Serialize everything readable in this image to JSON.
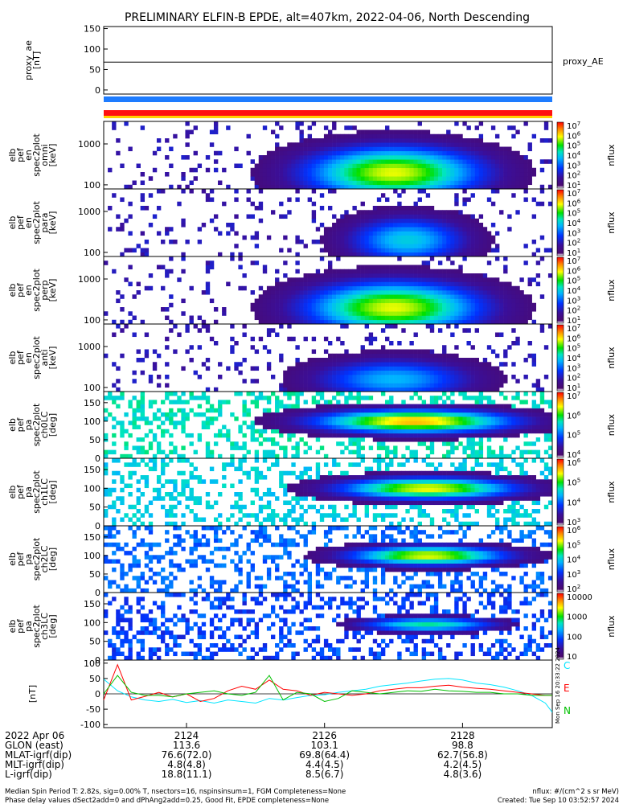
{
  "title": "PRELIMINARY ELFIN-B EPDE, alt=407km, 2022-04-06, North Descending",
  "chart_data": [
    {
      "type": "line",
      "ylabel": "proxy_ae\n[nT]",
      "yticks": [
        0,
        50,
        100,
        150
      ],
      "ylim": [
        -10,
        155
      ],
      "series": [
        {
          "name": "proxy_AE",
          "x": [
            2122.8,
            2129.3
          ],
          "values": [
            68,
            68
          ]
        }
      ]
    },
    {
      "type": "heatmap",
      "ylabel": "elb\npef\nen\nspec2plot\nomni\n[keV]",
      "ylog": true,
      "yticks": [
        100,
        1000
      ],
      "colorbar_label": "nflux",
      "colorbar_ticks": [
        "10^1",
        "10^2",
        "10^3",
        "10^4",
        "10^5",
        "10^6",
        "10^7"
      ],
      "zrange": [
        1,
        7
      ],
      "blobs": [
        {
          "x": 2127.0,
          "y": 2.3,
          "sx": 0.9,
          "sy": 0.45,
          "z": 5.4
        }
      ]
    },
    {
      "type": "heatmap",
      "ylabel": "elb\npef\nen\nspec2plot\npara\n[keV]",
      "ylog": true,
      "yticks": [
        100,
        1000
      ],
      "colorbar_label": "nflux",
      "colorbar_ticks": [
        "10^1",
        "10^2",
        "10^3",
        "10^4",
        "10^5",
        "10^6",
        "10^7"
      ],
      "zrange": [
        1,
        7
      ],
      "blobs": [
        {
          "x": 2127.2,
          "y": 2.3,
          "sx": 0.6,
          "sy": 0.4,
          "z": 3.5
        }
      ]
    },
    {
      "type": "heatmap",
      "ylabel": "elb\npef\nen\nspec2plot\nperp\n[keV]",
      "ylog": true,
      "yticks": [
        100,
        1000
      ],
      "colorbar_label": "nflux",
      "colorbar_ticks": [
        "10^1",
        "10^2",
        "10^3",
        "10^4",
        "10^5",
        "10^6",
        "10^7"
      ],
      "zrange": [
        1,
        7
      ],
      "blobs": [
        {
          "x": 2127.0,
          "y": 2.3,
          "sx": 0.9,
          "sy": 0.45,
          "z": 5.4
        }
      ]
    },
    {
      "type": "heatmap",
      "ylabel": "elb\npef\nen\nspec2plot\nanti\n[keV]",
      "ylog": true,
      "yticks": [
        100,
        1000
      ],
      "colorbar_label": "nflux",
      "colorbar_ticks": [
        "10^1",
        "10^2",
        "10^3",
        "10^4",
        "10^5",
        "10^6",
        "10^7"
      ],
      "zrange": [
        1,
        7
      ],
      "blobs": [
        {
          "x": 2127.0,
          "y": 2.2,
          "sx": 0.8,
          "sy": 0.35,
          "z": 3.2
        }
      ]
    },
    {
      "type": "heatmap",
      "ylabel": "elb\npef\npa\nspec2plot\nch0LC\n[deg]",
      "yticks": [
        0,
        50,
        100,
        150
      ],
      "ylim": [
        0,
        180
      ],
      "colorbar_label": "nflux",
      "colorbar_ticks": [
        "10^4",
        "10^5",
        "10^6",
        "10^7"
      ],
      "zrange": [
        3.5,
        7
      ],
      "blobs": [
        {
          "x": 2127.3,
          "y": 100,
          "sx": 1.0,
          "sy": 22,
          "z": 6.0
        }
      ]
    },
    {
      "type": "heatmap",
      "ylabel": "elb\npef\npa\nspec2plot\nch1LC\n[deg]",
      "yticks": [
        0,
        50,
        100,
        150
      ],
      "ylim": [
        0,
        180
      ],
      "colorbar_label": "nflux",
      "colorbar_ticks": [
        "10^3",
        "10^4",
        "10^5",
        "10^6"
      ],
      "zrange": [
        3,
        6.6
      ],
      "blobs": [
        {
          "x": 2127.5,
          "y": 100,
          "sx": 0.9,
          "sy": 20,
          "z": 5.2
        }
      ]
    },
    {
      "type": "heatmap",
      "ylabel": "elb\npef\npa\nspec2plot\nch2LC\n[deg]",
      "yticks": [
        0,
        50,
        100,
        150
      ],
      "ylim": [
        0,
        180
      ],
      "colorbar_label": "nflux",
      "colorbar_ticks": [
        "10^2",
        "10^3",
        "10^4",
        "10^5",
        "10^6"
      ],
      "zrange": [
        2,
        6.4
      ],
      "blobs": [
        {
          "x": 2127.5,
          "y": 100,
          "sx": 0.8,
          "sy": 18,
          "z": 5.0
        }
      ]
    },
    {
      "type": "heatmap",
      "ylabel": "elb\npef\npa\nspec2plot\nch3LC\n[deg]",
      "yticks": [
        0,
        50,
        100,
        150
      ],
      "ylim": [
        0,
        180
      ],
      "colorbar_label": "nflux",
      "colorbar_ticks": [
        "10",
        "100",
        "1000",
        "10000"
      ],
      "zrange": [
        1,
        4.2
      ],
      "blobs": [
        {
          "x": 2127.5,
          "y": 95,
          "sx": 0.7,
          "sy": 14,
          "z": 2.4
        }
      ]
    },
    {
      "type": "line",
      "ylabel": "[nT]",
      "yticks": [
        -100,
        -50,
        0,
        50,
        100
      ],
      "ylim": [
        -110,
        110
      ],
      "x": [
        2122.8,
        2123.0,
        2123.2,
        2123.4,
        2123.6,
        2123.8,
        2124.0,
        2124.2,
        2124.4,
        2124.6,
        2124.8,
        2125.0,
        2125.2,
        2125.4,
        2125.6,
        2125.8,
        2126.0,
        2126.2,
        2126.4,
        2126.6,
        2126.8,
        2127.0,
        2127.2,
        2127.4,
        2127.6,
        2127.8,
        2128.0,
        2128.2,
        2128.4,
        2128.6,
        2128.8,
        2129.0,
        2129.2,
        2129.3
      ],
      "series": [
        {
          "name": "C",
          "color": "#00e5ff",
          "values": [
            48,
            10,
            -10,
            -20,
            -25,
            -18,
            -28,
            -22,
            -30,
            -20,
            -25,
            -30,
            -15,
            -20,
            -12,
            -5,
            -3,
            5,
            10,
            15,
            25,
            30,
            35,
            42,
            48,
            50,
            45,
            35,
            30,
            22,
            10,
            -5,
            -30,
            -60
          ]
        },
        {
          "name": "E",
          "color": "#ff0000",
          "values": [
            -20,
            95,
            -20,
            -8,
            5,
            -10,
            0,
            -25,
            -15,
            10,
            25,
            15,
            45,
            15,
            10,
            -5,
            5,
            0,
            -5,
            0,
            10,
            15,
            20,
            20,
            25,
            28,
            22,
            18,
            15,
            10,
            5,
            0,
            -5,
            -5
          ]
        },
        {
          "name": "N",
          "color": "#00c000",
          "values": [
            0,
            60,
            5,
            -5,
            -5,
            -10,
            0,
            5,
            10,
            0,
            -5,
            5,
            60,
            -20,
            5,
            0,
            -25,
            -15,
            10,
            5,
            0,
            5,
            10,
            8,
            15,
            10,
            8,
            5,
            5,
            0,
            0,
            -5,
            -5,
            -5
          ]
        }
      ]
    }
  ],
  "x_axis": {
    "ticks": [
      "2124",
      "2126",
      "2128"
    ],
    "tick_values": [
      2124,
      2126,
      2128
    ],
    "xlim": [
      2122.8,
      2129.3
    ],
    "rows": [
      {
        "label": "2022 Apr 06",
        "vals": [
          "2124",
          "2126",
          "2128"
        ]
      },
      {
        "label": "GLON (east)",
        "vals": [
          "113.6",
          "103.1",
          "98.8"
        ]
      },
      {
        "label": "MLAT-igrf(dip)",
        "vals": [
          "76.6(72.0)",
          "69.8(64.4)",
          "62.7(56.8)"
        ]
      },
      {
        "label": "MLT-igrf(dip)",
        "vals": [
          "4.8(4.8)",
          "4.4(4.5)",
          "4.2(4.5)"
        ]
      },
      {
        "label": "L-igrf(dip)",
        "vals": [
          "18.8(11.1)",
          "8.5(6.7)",
          "4.8(3.6)"
        ]
      }
    ]
  },
  "side_stamp": "Mon Sep 16 20:33:22 2024",
  "footer": {
    "line1_left": "Median Spin Period T: 2.82s, sig=0.00% T, nsectors=16, nspinsinsum=1, FGM Completeness=None",
    "line1_right": "nflux: #/(cm^2 s sr MeV)",
    "line2_left": "Phase delay values dSect2add=0 and dPhAng2add=0.25, Good Fit, EPDE completeness=None",
    "line2_right": "Created: Tue Sep 10 03:52:57 2024"
  },
  "colors": {
    "bar_blue": "#1e7cff",
    "bar_red": "#ff1010",
    "bar_yellow": "#ffd000"
  }
}
